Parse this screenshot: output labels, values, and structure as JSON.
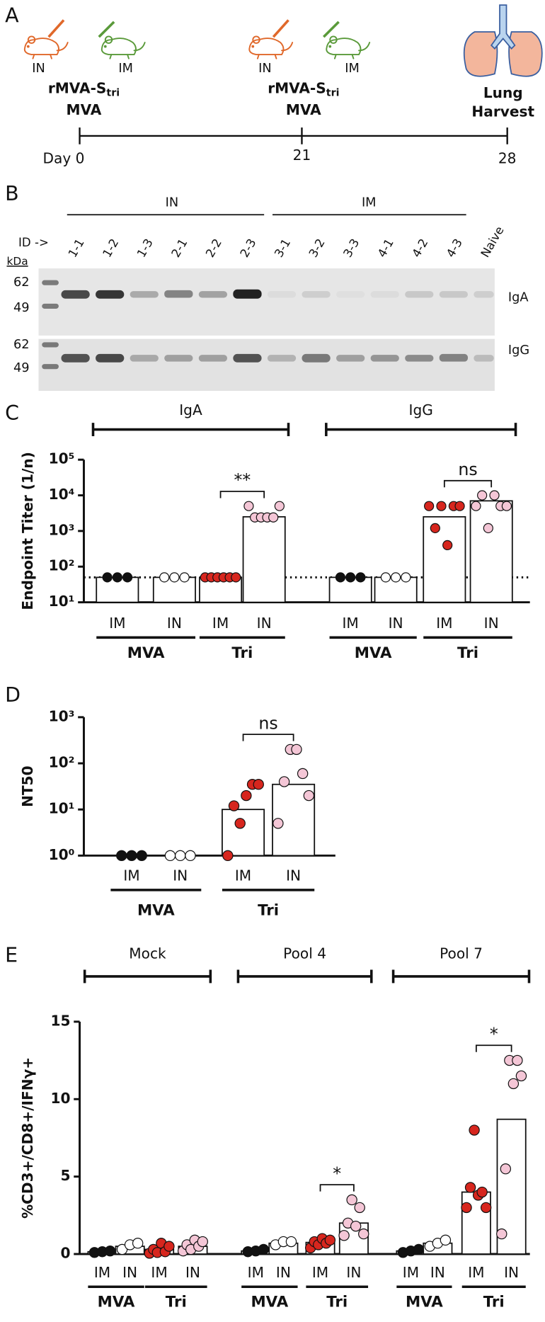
{
  "panel_a": {
    "label": "A",
    "prime": {
      "routes": [
        "IN",
        "IM"
      ],
      "vaccine": "rMVA-S",
      "vaccine_sub": "tri",
      "control": "MVA"
    },
    "boost": {
      "routes": [
        "IN",
        "IM"
      ],
      "vaccine": "rMVA-S",
      "vaccine_sub": "tri",
      "control": "MVA"
    },
    "harvest": [
      "Lung",
      "Harvest"
    ],
    "timeline": [
      "Day 0",
      "21",
      "28"
    ]
  },
  "panel_b": {
    "label": "B",
    "groups": [
      "IN",
      "IM"
    ],
    "id_label": "ID ->",
    "lanes": [
      "1-1",
      "1-2",
      "1-3",
      "2-1",
      "2-2",
      "2-3",
      "3-1",
      "3-2",
      "3-3",
      "4-1",
      "4-2",
      "4-3",
      "Naive"
    ],
    "kda": "kDa",
    "markers": [
      "62",
      "49"
    ],
    "blots": [
      "IgA",
      "IgG"
    ]
  },
  "chart_data": [
    {
      "type": "dotbar",
      "panel_label": "C",
      "ylabel": "Endpoint Titer (1/n)",
      "log": true,
      "ylim": [
        10,
        100000
      ],
      "yticks": [
        {
          "value": 10,
          "label": "10¹"
        },
        {
          "value": 100,
          "label": "10²"
        },
        {
          "value": 1000,
          "label": "10³"
        },
        {
          "value": 10000,
          "label": "10⁴"
        },
        {
          "value": 100000,
          "label": "10⁵"
        }
      ],
      "top_labels": [
        "IgA",
        "IgG"
      ],
      "categories": [
        "IM",
        "IN",
        "IM",
        "IN",
        "IM",
        "IN",
        "IM",
        "IN"
      ],
      "group_labels": [
        "MVA",
        "Tri",
        "MVA",
        "Tri"
      ],
      "significance": [
        null,
        "**",
        null,
        "ns"
      ],
      "colors": [
        "#111111",
        "#ffffff",
        "#d7261e",
        "#f4c6d6",
        "#111111",
        "#ffffff",
        "#d7261e",
        "#f4c6d6"
      ],
      "bars": [
        50,
        50,
        50,
        2500,
        50,
        50,
        2500,
        7000
      ],
      "points": [
        [
          50,
          50,
          50
        ],
        [
          50,
          50,
          50
        ],
        [
          50,
          50,
          50,
          50,
          50,
          50
        ],
        [
          5000,
          2400,
          2400,
          2400,
          2400,
          5000
        ],
        [
          50,
          50,
          50
        ],
        [
          50,
          50,
          50
        ],
        [
          5000,
          1200,
          5000,
          400,
          5000,
          5000
        ],
        [
          5000,
          10000,
          1200,
          10000,
          5000,
          5000
        ]
      ],
      "threshold": 50
    },
    {
      "type": "dotbar",
      "panel_label": "D",
      "ylabel": "NT50",
      "log": true,
      "ylim": [
        1,
        1000
      ],
      "yticks": [
        {
          "value": 1,
          "label": "10⁰"
        },
        {
          "value": 10,
          "label": "10¹"
        },
        {
          "value": 100,
          "label": "10²"
        },
        {
          "value": 1000,
          "label": "10³"
        }
      ],
      "categories": [
        "IM",
        "IN",
        "IM",
        "IN"
      ],
      "group_labels": [
        "MVA",
        "Tri"
      ],
      "significance": [
        null,
        "ns"
      ],
      "colors": [
        "#111111",
        "#ffffff",
        "#d7261e",
        "#f4c6d6"
      ],
      "bars": [
        1,
        1,
        10,
        35
      ],
      "points": [
        [
          1,
          1,
          1
        ],
        [
          1,
          1,
          1
        ],
        [
          1,
          12,
          5,
          20,
          35,
          35
        ],
        [
          5,
          40,
          200,
          200,
          60,
          20
        ]
      ]
    },
    {
      "type": "dotbar",
      "panel_label": "E",
      "ylabel": "%CD3+/CD8+/IFNγ+",
      "log": false,
      "ylim": [
        0,
        15
      ],
      "yticks": [
        0,
        5,
        10,
        15
      ],
      "top_labels": [
        "Mock",
        "Pool 4",
        "Pool 7"
      ],
      "categories": [
        "IM",
        "IN",
        "IM",
        "IN",
        "IM",
        "IN",
        "IM",
        "IN",
        "IM",
        "IN",
        "IM",
        "IN"
      ],
      "group_labels": [
        "MVA",
        "Tri",
        "MVA",
        "Tri",
        "MVA",
        "Tri"
      ],
      "significance": [
        null,
        null,
        null,
        "*",
        null,
        "*"
      ],
      "colors": [
        "#111111",
        "#ffffff",
        "#d7261e",
        "#f4c6d6",
        "#111111",
        "#ffffff",
        "#d7261e",
        "#f4c6d6",
        "#111111",
        "#ffffff",
        "#d7261e",
        "#f4c6d6"
      ],
      "bars": [
        0.15,
        0.5,
        0.3,
        0.5,
        0.2,
        0.7,
        0.75,
        2.0,
        0.2,
        0.7,
        4.0,
        8.7
      ],
      "points": [
        [
          0.1,
          0.15,
          0.2
        ],
        [
          0.3,
          0.6,
          0.7
        ],
        [
          0.05,
          0.3,
          0.1,
          0.7,
          0.15,
          0.5
        ],
        [
          0.2,
          0.6,
          0.3,
          0.9,
          0.5,
          0.8
        ],
        [
          0.15,
          0.2,
          0.3
        ],
        [
          0.6,
          0.8,
          0.8
        ],
        [
          0.4,
          0.8,
          0.6,
          1.0,
          0.7,
          0.9
        ],
        [
          1.2,
          2.0,
          3.5,
          1.8,
          3.0,
          1.3
        ],
        [
          0.1,
          0.2,
          0.3
        ],
        [
          0.5,
          0.7,
          0.9
        ],
        [
          3.0,
          4.3,
          8.0,
          3.8,
          4.0,
          3.0
        ],
        [
          1.3,
          5.5,
          12.5,
          11.0,
          12.5,
          11.5
        ]
      ]
    }
  ]
}
